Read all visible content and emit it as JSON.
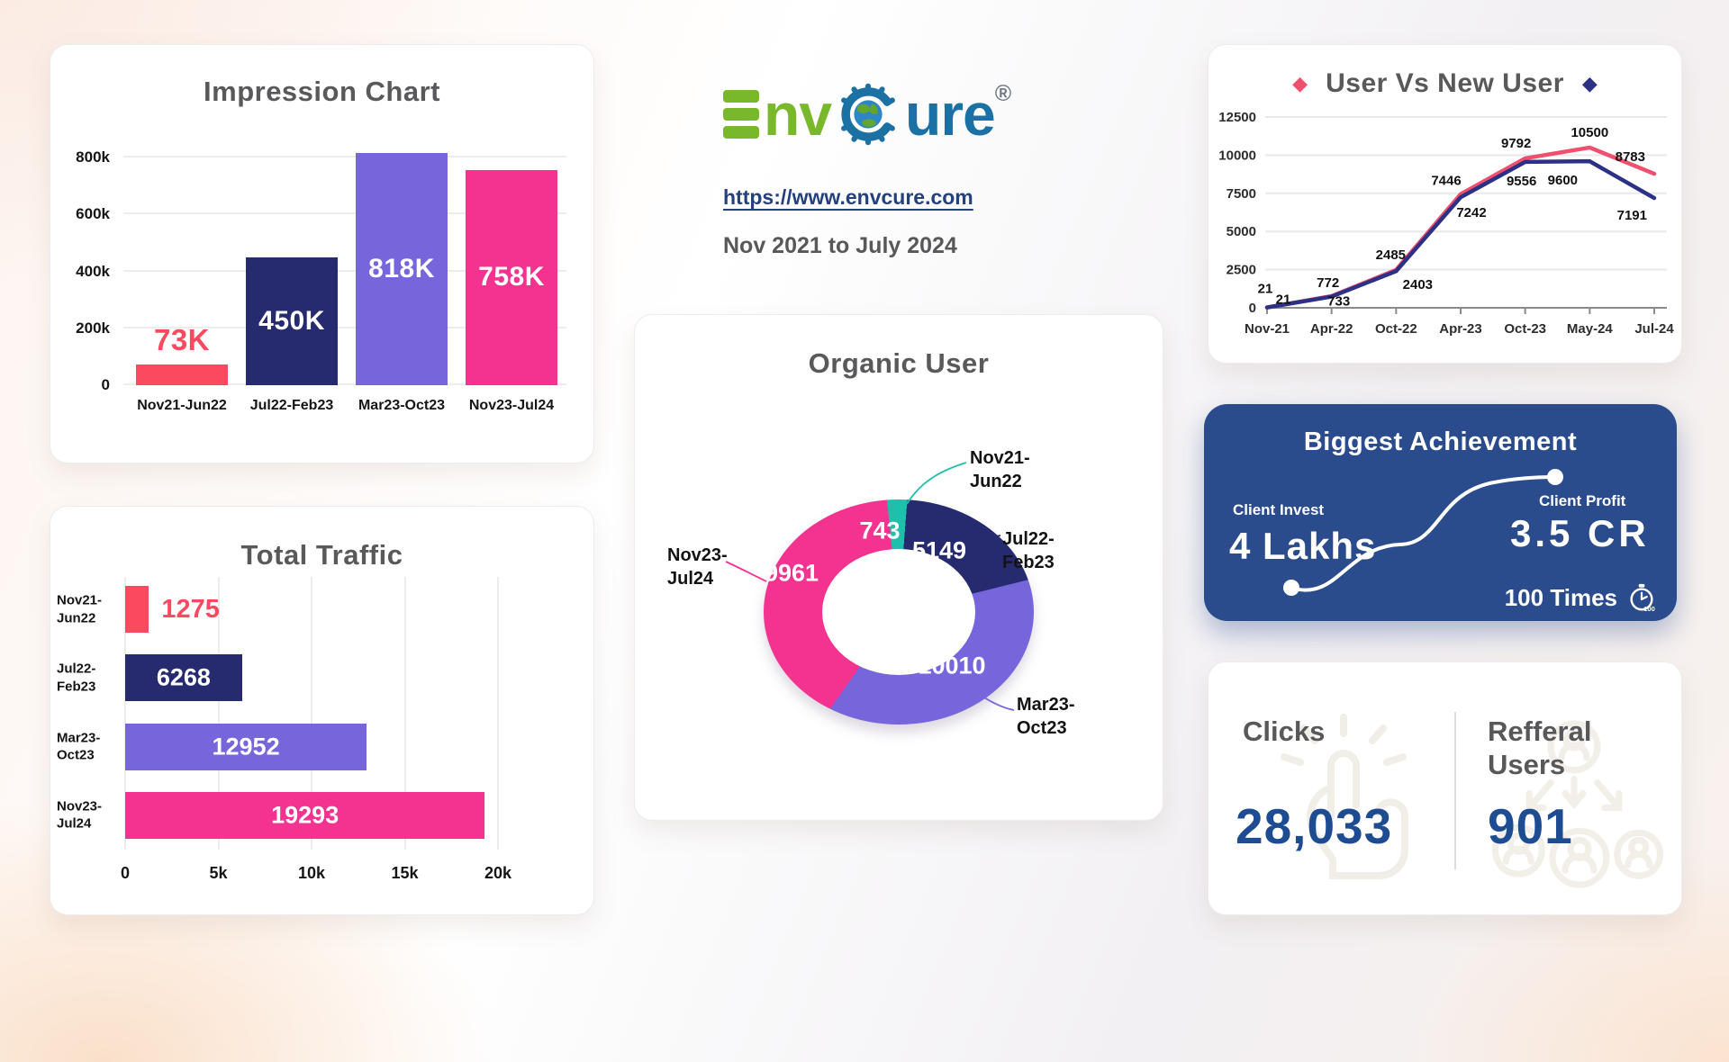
{
  "brand": {
    "name": "EnvCure",
    "name_part_green": "nv",
    "name_part_blue": "ure",
    "registered_mark": "®",
    "green_color": "#7ab82b",
    "blue_color": "#1c71a4",
    "url": "https://www.envcure.com",
    "period": "Nov 2021 to July 2024"
  },
  "achievement": {
    "title": "Biggest Achievement",
    "invest_label": "Client Invest",
    "invest_value": "4 Lakhs",
    "profit_label": "Client Profit",
    "profit_value": "3.5 CR",
    "multiplier": "100 Times",
    "bg_color": "#2a4b8c"
  },
  "stats": {
    "clicks_label": "Clicks",
    "clicks_value": "28,033",
    "referral_label": "Refferal Users",
    "referral_value": "901",
    "value_color": "#1e4c92"
  },
  "legend": {
    "user_marker": "◆",
    "new_user_marker": "◆"
  },
  "chart_data": [
    {
      "type": "bar",
      "title": "Impression Chart",
      "categories": [
        "Nov21-Jun22",
        "Jul22-Feb23",
        "Mar23-Oct23",
        "Nov23-Jul24"
      ],
      "values": [
        73000,
        450000,
        818000,
        758000
      ],
      "bar_labels": [
        "73K",
        "450K",
        "818K",
        "758K"
      ],
      "colors": [
        "#fb4a5f",
        "#262a6e",
        "#7766db",
        "#f43390"
      ],
      "yticks": {
        "values": [
          0,
          200000,
          400000,
          600000,
          800000
        ],
        "labels": [
          "0",
          "200k",
          "400k",
          "600k",
          "800k"
        ]
      },
      "ylim": [
        0,
        880000
      ],
      "grid": true
    },
    {
      "type": "bar-horizontal",
      "title": "Total Traffic",
      "categories": [
        "Nov21-\nJun22",
        "Jul22-\nFeb23",
        "Mar23-\nOct23",
        "Nov23-\nJul24"
      ],
      "values": [
        1275,
        6268,
        12952,
        19293
      ],
      "colors": [
        "#fb4a5f",
        "#262a6e",
        "#7766db",
        "#f43390"
      ],
      "xticks": {
        "values": [
          0,
          5000,
          10000,
          15000,
          20000
        ],
        "labels": [
          "0",
          "5k",
          "10k",
          "15k",
          "20k"
        ]
      },
      "xlim": [
        0,
        20000
      ],
      "grid": true
    },
    {
      "type": "donut",
      "title": "Organic User",
      "labels": [
        "Nov21-\nJun22",
        "Jul22-\nFeb23",
        "Mar23-\nOct23",
        "Nov23-\nJul24"
      ],
      "values": [
        743,
        5149,
        10010,
        9961
      ],
      "colors": [
        "#1ec0ac",
        "#262a6e",
        "#7766db",
        "#f43390"
      ],
      "start_angle_deg": -6
    },
    {
      "type": "line",
      "title": "User Vs New User",
      "x": [
        "Nov-21",
        "Apr-22",
        "Oct-22",
        "Apr-23",
        "Oct-23",
        "May-24",
        "Jul-24"
      ],
      "series": [
        {
          "name": "User",
          "color": "#f04f6e",
          "values": [
            21,
            772,
            2485,
            7446,
            9792,
            10500,
            8783
          ]
        },
        {
          "name": "New User",
          "color": "#2d3185",
          "values": [
            21,
            733,
            2403,
            7242,
            9556,
            9600,
            7191
          ]
        }
      ],
      "yticks": [
        0,
        2500,
        5000,
        7500,
        10000,
        12500
      ],
      "ylim": [
        0,
        12500
      ],
      "legend_position": "title-flanking-diamonds",
      "grid": true
    }
  ]
}
